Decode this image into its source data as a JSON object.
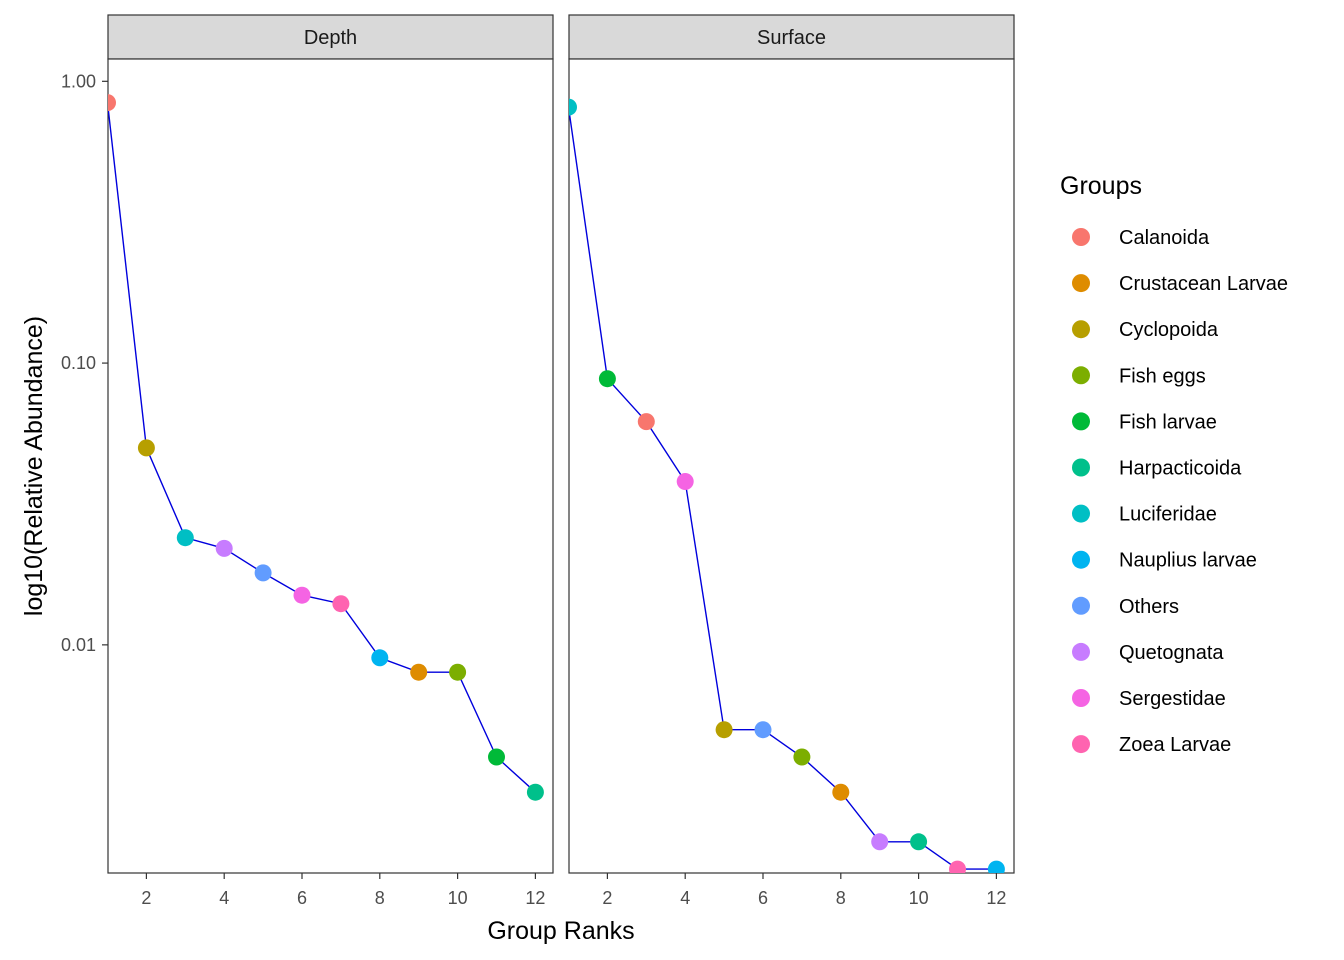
{
  "chart_data": {
    "type": "scatter",
    "ylabel": "log10(Relative Abundance)",
    "xlabel": "Group Ranks",
    "y_scale": "log10",
    "ylim": [
      0.00155,
      1.2
    ],
    "xlim": [
      1,
      12.5
    ],
    "x_ticks": [
      2,
      4,
      6,
      8,
      10,
      12
    ],
    "y_ticks": [
      {
        "value": 1.0,
        "label": "1.00"
      },
      {
        "value": 0.1,
        "label": "0.10"
      },
      {
        "value": 0.01,
        "label": "0.01"
      }
    ],
    "grid": false,
    "legend_position": "right",
    "line_color": "#0000dd",
    "legend": {
      "title": "Groups",
      "items": [
        {
          "name": "Calanoida",
          "color": "#F8766D"
        },
        {
          "name": "Crustacean Larvae",
          "color": "#DE8C00"
        },
        {
          "name": "Cyclopoida",
          "color": "#B79F00"
        },
        {
          "name": "Fish eggs",
          "color": "#7CAE00"
        },
        {
          "name": "Fish larvae",
          "color": "#00BA38"
        },
        {
          "name": "Harpacticoida",
          "color": "#00C08B"
        },
        {
          "name": "Luciferidae",
          "color": "#00BFC4"
        },
        {
          "name": "Nauplius larvae",
          "color": "#00B4F0"
        },
        {
          "name": "Others",
          "color": "#619CFF"
        },
        {
          "name": "Quetognata",
          "color": "#C77CFF"
        },
        {
          "name": "Sergestidae",
          "color": "#F564E3"
        },
        {
          "name": "Zoea Larvae",
          "color": "#FF64B0"
        }
      ]
    },
    "panels": [
      {
        "name": "Depth",
        "points": [
          {
            "x": 1,
            "y": 0.84,
            "group": "Calanoida"
          },
          {
            "x": 2,
            "y": 0.05,
            "group": "Cyclopoida"
          },
          {
            "x": 3,
            "y": 0.024,
            "group": "Luciferidae"
          },
          {
            "x": 4,
            "y": 0.022,
            "group": "Quetognata"
          },
          {
            "x": 5,
            "y": 0.018,
            "group": "Others"
          },
          {
            "x": 6,
            "y": 0.015,
            "group": "Sergestidae"
          },
          {
            "x": 7,
            "y": 0.014,
            "group": "Zoea Larvae"
          },
          {
            "x": 8,
            "y": 0.009,
            "group": "Nauplius larvae"
          },
          {
            "x": 9,
            "y": 0.008,
            "group": "Crustacean Larvae"
          },
          {
            "x": 10,
            "y": 0.008,
            "group": "Fish eggs"
          },
          {
            "x": 11,
            "y": 0.004,
            "group": "Fish larvae"
          },
          {
            "x": 12,
            "y": 0.003,
            "group": "Harpacticoida"
          }
        ]
      },
      {
        "name": "Surface",
        "points": [
          {
            "x": 1,
            "y": 0.81,
            "group": "Luciferidae"
          },
          {
            "x": 2,
            "y": 0.088,
            "group": "Fish larvae"
          },
          {
            "x": 3,
            "y": 0.062,
            "group": "Calanoida"
          },
          {
            "x": 4,
            "y": 0.038,
            "group": "Sergestidae"
          },
          {
            "x": 5,
            "y": 0.005,
            "group": "Cyclopoida"
          },
          {
            "x": 6,
            "y": 0.005,
            "group": "Others"
          },
          {
            "x": 7,
            "y": 0.004,
            "group": "Fish eggs"
          },
          {
            "x": 8,
            "y": 0.003,
            "group": "Crustacean Larvae"
          },
          {
            "x": 9,
            "y": 0.002,
            "group": "Quetognata"
          },
          {
            "x": 10,
            "y": 0.002,
            "group": "Harpacticoida"
          },
          {
            "x": 11,
            "y": 0.0016,
            "group": "Zoea Larvae"
          },
          {
            "x": 12,
            "y": 0.0016,
            "group": "Nauplius larvae"
          }
        ]
      }
    ]
  }
}
